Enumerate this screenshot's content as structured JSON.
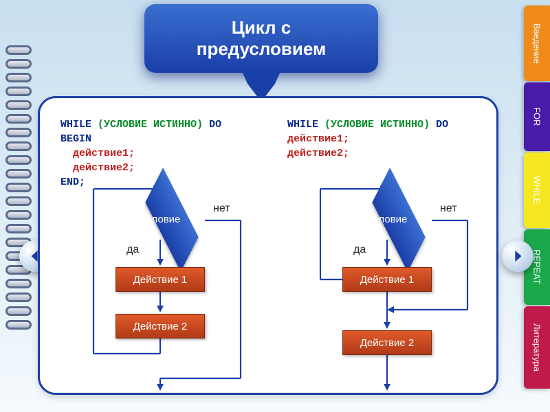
{
  "title": {
    "line1": "Цикл с",
    "line2": "предусловием"
  },
  "tabs": [
    {
      "label": "Введение",
      "color": "#f08a1a",
      "height": 110
    },
    {
      "label": "FOR",
      "color": "#4a1aa8",
      "height": 100
    },
    {
      "label": "WHILE",
      "color": "#f5e820",
      "height": 110
    },
    {
      "label": "REPEAT",
      "color": "#1aa84a",
      "height": 110
    },
    {
      "label": "Литература",
      "color": "#c01a4a",
      "height": 120
    }
  ],
  "code_left": {
    "l1": {
      "kw1": "WHILE ",
      "paren": "(",
      "cond": "УСЛОВИЕ ИСТИННО",
      "paren2": ") ",
      "kw2": "DO"
    },
    "l2": "BEGIN",
    "l3": "  действие1;",
    "l4": "  действие2;",
    "l5": "END;"
  },
  "code_right": {
    "l1": {
      "kw1": "WHILE ",
      "paren": "(",
      "cond": "УСЛОВИЕ ИСТИННО",
      "paren2": ") ",
      "kw2": "DO"
    },
    "l2": "действие1;",
    "l3": "действие2;"
  },
  "flow": {
    "condition": "условие",
    "yes": "да",
    "no": "нет",
    "act1": "Действие 1",
    "act2": "Действие 2"
  },
  "colors": {
    "banner_from": "#3a6fd0",
    "banner_to": "#1b3fa8",
    "rect_from": "#e05a2a",
    "rect_to": "#b03a18",
    "line": "#1b3fa8"
  }
}
